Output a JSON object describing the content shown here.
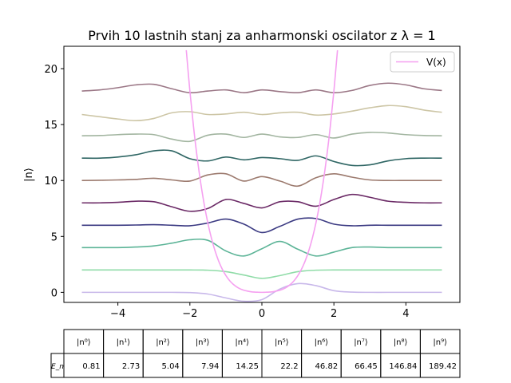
{
  "chart_data": {
    "type": "line",
    "title": "Prvih 10 lastnih stanj za anharmonski oscilator z λ = 1",
    "xlabel": "",
    "ylabel": "|n⟩",
    "xlim": [
      -5.5,
      5.5
    ],
    "ylim": [
      -0.9,
      22
    ],
    "xticks": [
      -4,
      -2,
      0,
      2,
      4
    ],
    "yticks": [
      0,
      5,
      10,
      15,
      20
    ],
    "grid": false,
    "legend": {
      "position": "top-right",
      "entries": [
        "V(x)"
      ]
    },
    "potential": {
      "name": "V(x)",
      "color": "#f5a0f0",
      "x": [
        -2.1,
        -2.0,
        -1.9,
        -1.8,
        -1.7,
        -1.6,
        -1.5,
        -1.4,
        -1.3,
        -1.2,
        -1.1,
        -1.0,
        -0.9,
        -0.8,
        -0.7,
        -0.6,
        -0.5,
        -0.4,
        -0.3,
        -0.2,
        -0.1,
        0.0,
        0.1,
        0.2,
        0.3,
        0.4,
        0.5,
        0.6,
        0.7,
        0.8,
        0.9,
        1.0,
        1.1,
        1.2,
        1.3,
        1.4,
        1.5,
        1.6,
        1.7,
        1.8,
        1.9,
        2.0,
        2.1
      ],
      "y": [
        21.65,
        18.0,
        14.84,
        12.12,
        9.8,
        7.83,
        6.19,
        4.82,
        3.7,
        2.79,
        2.07,
        1.5,
        1.06,
        0.73,
        0.49,
        0.31,
        0.19,
        0.11,
        0.05,
        0.02,
        0.01,
        0.0,
        0.01,
        0.02,
        0.05,
        0.11,
        0.19,
        0.31,
        0.49,
        0.73,
        1.06,
        1.5,
        2.07,
        2.79,
        3.7,
        4.82,
        6.19,
        7.83,
        9.8,
        12.12,
        14.84,
        18.0,
        21.65
      ]
    },
    "x": [
      -5.0,
      -4.5,
      -4.0,
      -3.5,
      -3.0,
      -2.5,
      -2.0,
      -1.5,
      -1.0,
      -0.5,
      0.0,
      0.5,
      1.0,
      1.5,
      2.0,
      2.5,
      3.0,
      3.5,
      4.0,
      4.5,
      5.0
    ],
    "series": [
      {
        "color": "#c8b8ea",
        "values": [
          0,
          0,
          0,
          0,
          0,
          0,
          -0.02,
          -0.15,
          -0.5,
          -0.8,
          -0.65,
          0.3,
          0.78,
          0.6,
          0.15,
          0.02,
          0,
          0,
          0,
          0,
          0
        ]
      },
      {
        "color": "#90dca8",
        "values": [
          2,
          2,
          2,
          2,
          2,
          2,
          2,
          1.98,
          1.85,
          1.55,
          1.25,
          1.5,
          1.85,
          1.98,
          2,
          2,
          2,
          2,
          2,
          2,
          2
        ]
      },
      {
        "color": "#5cb497",
        "values": [
          4,
          4,
          4,
          4.05,
          4.15,
          4.4,
          4.7,
          4.65,
          3.7,
          3.25,
          3.9,
          4.55,
          3.85,
          3.25,
          3.6,
          4.0,
          4.05,
          4.0,
          4.0,
          4.0,
          4.0
        ]
      },
      {
        "color": "#3b3a82",
        "values": [
          6,
          6,
          6,
          6.02,
          6.05,
          6.0,
          5.95,
          6.2,
          6.55,
          6.1,
          5.35,
          5.9,
          6.55,
          6.6,
          6.1,
          5.95,
          6.0,
          6.0,
          6.0,
          6.0,
          6.0
        ]
      },
      {
        "color": "#6b2a66",
        "values": [
          8,
          8,
          8.05,
          8.15,
          8.1,
          7.65,
          7.25,
          7.5,
          8.3,
          7.95,
          7.55,
          8.1,
          8.1,
          7.7,
          8.3,
          8.75,
          8.5,
          8.15,
          8.05,
          8.0,
          8.0
        ]
      },
      {
        "color": "#9c7a6e",
        "values": [
          10,
          10.02,
          10.05,
          10.1,
          10.2,
          10.05,
          9.95,
          10.5,
          10.6,
          9.95,
          10.35,
          9.95,
          9.5,
          10.25,
          10.6,
          10.3,
          10.05,
          10.0,
          10.0,
          10.0,
          10.0
        ]
      },
      {
        "color": "#2f6664",
        "values": [
          12,
          12,
          12.1,
          12.3,
          12.65,
          12.65,
          11.95,
          11.75,
          12.1,
          11.85,
          12.05,
          11.95,
          11.8,
          12.2,
          11.7,
          11.35,
          11.4,
          11.75,
          11.95,
          12.0,
          12.0
        ]
      },
      {
        "color": "#a2b5a0",
        "values": [
          14,
          14.02,
          14.1,
          14.15,
          14.1,
          13.7,
          13.5,
          14.05,
          14.15,
          13.85,
          14.15,
          13.9,
          13.85,
          14.1,
          13.8,
          14.15,
          14.3,
          14.25,
          14.1,
          14.02,
          14.0
        ]
      },
      {
        "color": "#cdc6a6",
        "values": [
          15.9,
          15.7,
          15.5,
          15.35,
          15.55,
          16.05,
          16.15,
          15.9,
          15.95,
          16.1,
          15.9,
          16.05,
          16.1,
          15.85,
          15.95,
          16.2,
          16.5,
          16.7,
          16.6,
          16.3,
          16.1
        ]
      },
      {
        "color": "#9b7786",
        "values": [
          18,
          18.1,
          18.3,
          18.55,
          18.6,
          18.2,
          17.85,
          18.0,
          18.1,
          17.85,
          18.1,
          17.95,
          17.85,
          18.1,
          17.85,
          18.05,
          18.5,
          18.7,
          18.55,
          18.2,
          18.05
        ]
      }
    ],
    "table": {
      "row_label": "E_n",
      "columns": [
        "|n⁰⟩",
        "|n¹⟩",
        "|n²⟩",
        "|n³⟩",
        "|n⁴⟩",
        "|n⁵⟩",
        "|n⁶⟩",
        "|n⁷⟩",
        "|n⁸⟩",
        "|n⁹⟩"
      ],
      "values": [
        "0.81",
        "2.73",
        "5.04",
        "7.94",
        "14.25",
        "22.2",
        "46.82",
        "66.45",
        "146.84",
        "189.42"
      ]
    }
  }
}
